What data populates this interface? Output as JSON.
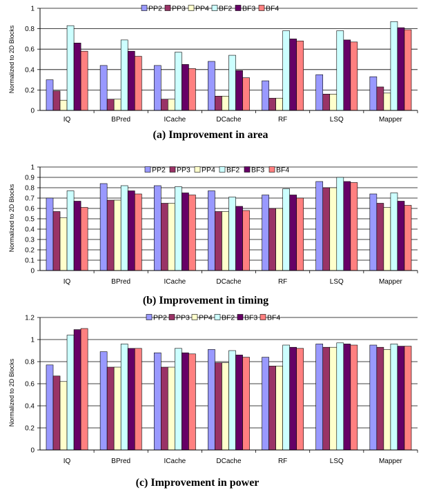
{
  "colors": {
    "PP2": "#9999ff",
    "PP3": "#993366",
    "PP4": "#ffffcc",
    "BF2": "#ccffff",
    "BF3": "#660066",
    "BF4": "#ff8080"
  },
  "chart_data": [
    {
      "type": "bar",
      "caption": "(a) Improvement in area",
      "ylabel": "Normalized to 2D Blocks",
      "ylim": [
        0,
        1
      ],
      "yticks": [
        "0",
        "0.2",
        "0.4",
        "0.6",
        "0.8",
        "1"
      ],
      "legend_position": "top",
      "categories": [
        "IQ",
        "BPred",
        "ICache",
        "DCache",
        "RF",
        "LSQ",
        "Mapper"
      ],
      "series": [
        {
          "name": "PP2",
          "values": [
            0.3,
            0.44,
            0.44,
            0.48,
            0.29,
            0.35,
            0.33
          ]
        },
        {
          "name": "PP3",
          "values": [
            0.19,
            0.11,
            0.11,
            0.14,
            0.12,
            0.16,
            0.23
          ]
        },
        {
          "name": "PP4",
          "values": [
            0.1,
            0.11,
            0.11,
            0.14,
            0.12,
            0.16,
            0.17
          ]
        },
        {
          "name": "BF2",
          "values": [
            0.83,
            0.69,
            0.57,
            0.54,
            0.78,
            0.78,
            0.87
          ]
        },
        {
          "name": "BF3",
          "values": [
            0.66,
            0.58,
            0.45,
            0.39,
            0.7,
            0.69,
            0.81
          ]
        },
        {
          "name": "BF4",
          "values": [
            0.58,
            0.53,
            0.41,
            0.32,
            0.68,
            0.67,
            0.79
          ]
        }
      ]
    },
    {
      "type": "bar",
      "caption": "(b) Improvement in timing",
      "ylabel": "Normalized to 2D Blocks",
      "ylim": [
        0,
        1
      ],
      "yticks": [
        "0",
        "0.1",
        "0.2",
        "0.3",
        "0.4",
        "0.5",
        "0.6",
        "0.7",
        "0.8",
        "0.9",
        "1"
      ],
      "legend_position": "top",
      "categories": [
        "IQ",
        "BPred",
        "ICache",
        "DCache",
        "RF",
        "LSQ",
        "Mapper"
      ],
      "series": [
        {
          "name": "PP2",
          "values": [
            0.7,
            0.84,
            0.82,
            0.77,
            0.73,
            0.86,
            0.74
          ]
        },
        {
          "name": "PP3",
          "values": [
            0.57,
            0.68,
            0.65,
            0.57,
            0.6,
            0.8,
            0.65
          ]
        },
        {
          "name": "PP4",
          "values": [
            0.51,
            0.68,
            0.65,
            0.57,
            0.6,
            0.8,
            0.61
          ]
        },
        {
          "name": "BF2",
          "values": [
            0.77,
            0.82,
            0.81,
            0.71,
            0.79,
            0.9,
            0.75
          ]
        },
        {
          "name": "BF3",
          "values": [
            0.67,
            0.77,
            0.75,
            0.62,
            0.73,
            0.86,
            0.67
          ]
        },
        {
          "name": "BF4",
          "values": [
            0.61,
            0.74,
            0.73,
            0.58,
            0.7,
            0.85,
            0.63
          ]
        }
      ]
    },
    {
      "type": "bar",
      "caption": "(c)    Improvement in power",
      "ylabel": "Normalized to 2D Blocks",
      "ylim": [
        0,
        1.2
      ],
      "yticks": [
        "0",
        "0.2",
        "0.4",
        "0.6",
        "0.8",
        "1",
        "1.2"
      ],
      "legend_position": "top",
      "categories": [
        "IQ",
        "BPred",
        "ICache",
        "DCache",
        "RF",
        "LSQ",
        "Mapper"
      ],
      "series": [
        {
          "name": "PP2",
          "values": [
            0.77,
            0.89,
            0.88,
            0.91,
            0.84,
            0.96,
            0.95
          ]
        },
        {
          "name": "PP3",
          "values": [
            0.67,
            0.75,
            0.75,
            0.79,
            0.76,
            0.93,
            0.93
          ]
        },
        {
          "name": "PP4",
          "values": [
            0.62,
            0.75,
            0.75,
            0.79,
            0.76,
            0.93,
            0.91
          ]
        },
        {
          "name": "BF2",
          "values": [
            1.04,
            0.96,
            0.92,
            0.9,
            0.95,
            0.97,
            0.96
          ]
        },
        {
          "name": "BF3",
          "values": [
            1.09,
            0.92,
            0.88,
            0.86,
            0.93,
            0.96,
            0.94
          ]
        },
        {
          "name": "BF4",
          "values": [
            1.1,
            0.92,
            0.87,
            0.84,
            0.92,
            0.95,
            0.94
          ]
        }
      ]
    }
  ]
}
